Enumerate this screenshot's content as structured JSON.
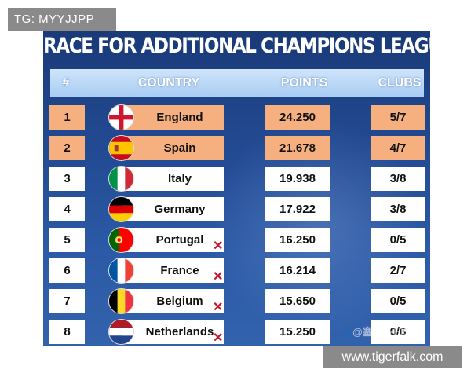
{
  "overlay": {
    "top_tag": "TG: MYYJJPP",
    "bottom_tag": "www.tigerfalk.com"
  },
  "graphic": {
    "title": "RACE FOR ADDITIONAL CHAMPIONS LEAGUE SPOTS",
    "watermark": "🐾@塞南茶曰58",
    "headers": {
      "rank": "#",
      "country": "COUNTRY",
      "points": "POINTS",
      "clubs": "CLUBS"
    },
    "colors": {
      "highlight": "#f6b07f",
      "header": "#bcd9f8",
      "background": "#234b94",
      "eliminated_mark": "#c0182b"
    },
    "rows": [
      {
        "rank": "1",
        "country": "England",
        "points": "24.250",
        "clubs": "5/7",
        "highlighted": true,
        "eliminated": false,
        "flag": "england-flag"
      },
      {
        "rank": "2",
        "country": "Spain",
        "points": "21.678",
        "clubs": "4/7",
        "highlighted": true,
        "eliminated": false,
        "flag": "spain-flag"
      },
      {
        "rank": "3",
        "country": "Italy",
        "points": "19.938",
        "clubs": "3/8",
        "highlighted": false,
        "eliminated": false,
        "flag": "italy-flag"
      },
      {
        "rank": "4",
        "country": "Germany",
        "points": "17.922",
        "clubs": "3/8",
        "highlighted": false,
        "eliminated": false,
        "flag": "germany-flag"
      },
      {
        "rank": "5",
        "country": "Portugal",
        "points": "16.250",
        "clubs": "0/5",
        "highlighted": false,
        "eliminated": true,
        "flag": "portugal-flag"
      },
      {
        "rank": "6",
        "country": "France",
        "points": "16.214",
        "clubs": "2/7",
        "highlighted": false,
        "eliminated": true,
        "flag": "france-flag"
      },
      {
        "rank": "7",
        "country": "Belgium",
        "points": "15.650",
        "clubs": "0/5",
        "highlighted": false,
        "eliminated": true,
        "flag": "belgium-flag"
      },
      {
        "rank": "8",
        "country": "Netherlands",
        "points": "15.250",
        "clubs": "0/6",
        "highlighted": false,
        "eliminated": true,
        "flag": "netherlands-flag"
      }
    ]
  }
}
